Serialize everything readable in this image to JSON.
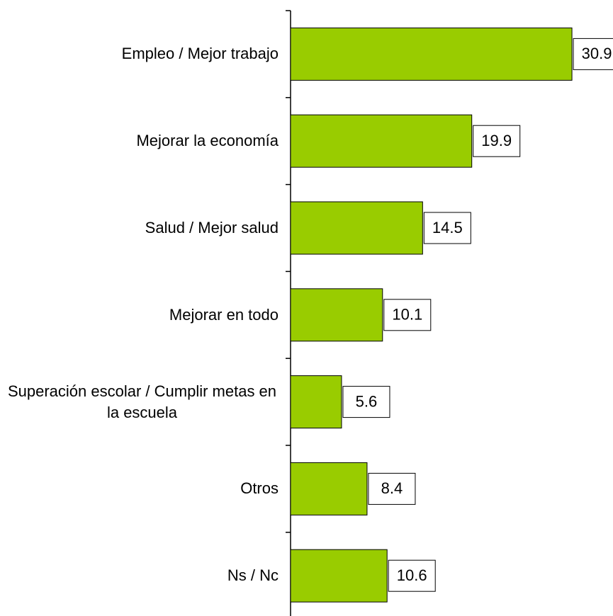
{
  "chart_data": {
    "type": "barh",
    "categories": [
      "Empleo / Mejor trabajo",
      "Mejorar la economía",
      "Salud / Mejor salud",
      "Mejorar en todo",
      "Superación escolar / Cumplir metas en la escuela",
      "Otros",
      "Ns / Nc"
    ],
    "values": [
      30.9,
      19.9,
      14.5,
      10.1,
      5.6,
      8.4,
      10.6
    ],
    "color": "#99cc00"
  }
}
